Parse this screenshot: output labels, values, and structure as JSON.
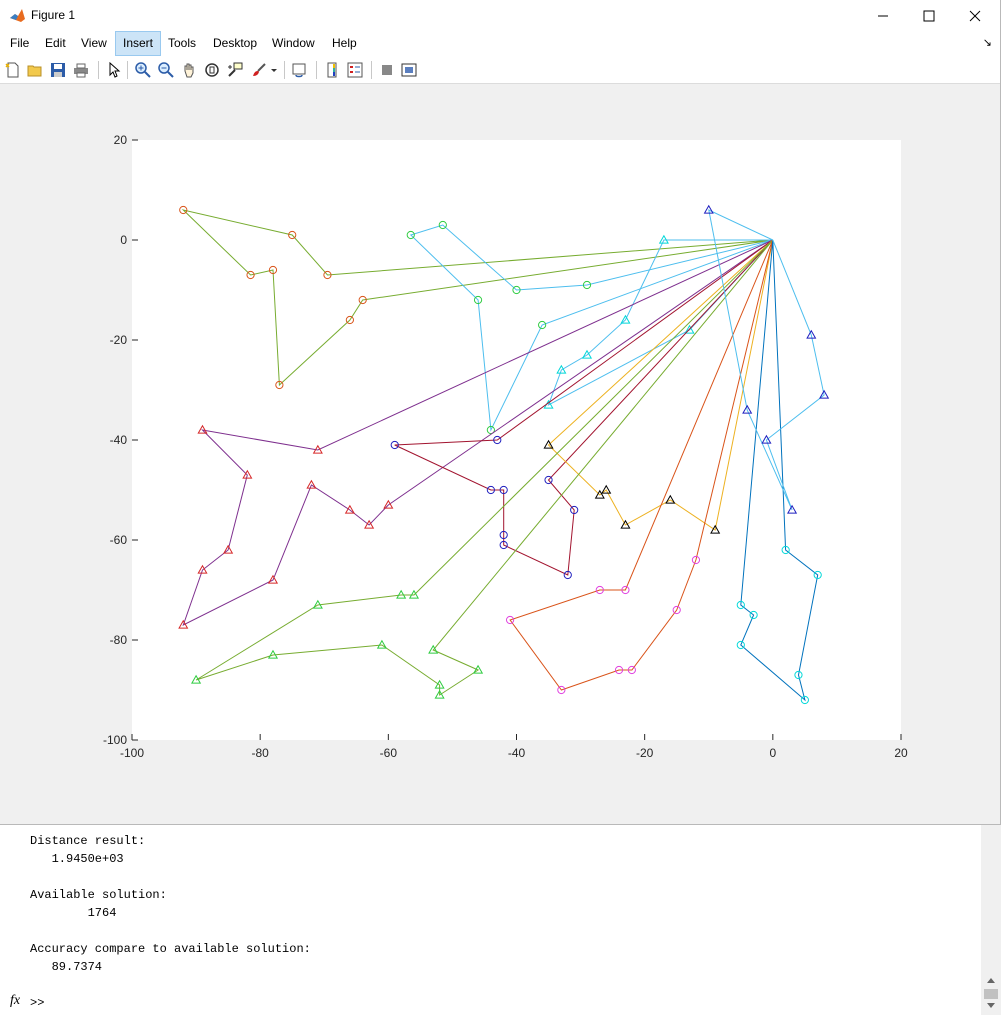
{
  "window": {
    "title": "Figure 1",
    "minimize_icon": "minimize-icon",
    "maximize_icon": "maximize-icon",
    "close_icon": "close-icon"
  },
  "menu": {
    "items": [
      "File",
      "Edit",
      "View",
      "Insert",
      "Tools",
      "Desktop",
      "Window",
      "Help"
    ],
    "active": "Insert"
  },
  "toolbar": {
    "icons": [
      "new-figure-icon",
      "open-file-icon",
      "save-icon",
      "print-icon",
      "edit-plot-icon",
      "zoom-in-icon",
      "zoom-out-icon",
      "pan-icon",
      "rotate-3d-icon",
      "data-cursor-icon",
      "brush-icon",
      "link-plot-icon",
      "insert-colorbar-icon",
      "insert-legend-icon",
      "hide-plot-tools-icon",
      "show-plot-tools-icon"
    ]
  },
  "chart_data": {
    "type": "line",
    "xlim": [
      -100,
      20
    ],
    "ylim": [
      -100,
      20
    ],
    "x_ticks": [
      -100,
      -80,
      -60,
      -40,
      -20,
      0,
      20
    ],
    "y_ticks": [
      20,
      0,
      -20,
      -40,
      -60,
      -80,
      -100
    ],
    "depot": [
      0,
      0
    ],
    "routes": [
      {
        "color": "#77ac30",
        "marker": "circle",
        "marker_color": "#d95319",
        "points": [
          [
            0,
            0
          ],
          [
            -69.5,
            -7
          ],
          [
            -75,
            1
          ],
          [
            -92,
            6
          ],
          [
            -81.5,
            -7
          ],
          [
            -78,
            -6
          ],
          [
            -77,
            -29
          ],
          [
            -66,
            -16
          ],
          [
            -64,
            -12
          ],
          [
            0,
            0
          ]
        ]
      },
      {
        "color": "#4dbeee",
        "marker": "circle",
        "marker_color": "#2ecc40",
        "points": [
          [
            0,
            0
          ],
          [
            -29,
            -9
          ],
          [
            -40,
            -10
          ],
          [
            -51.5,
            3
          ],
          [
            -56.5,
            1
          ],
          [
            -46,
            -12
          ],
          [
            -44,
            -38
          ],
          [
            -36,
            -17
          ],
          [
            0,
            0
          ]
        ]
      },
      {
        "color": "#4dbeee",
        "marker": "triangle",
        "marker_color": "#00d8d8",
        "points": [
          [
            0,
            0
          ],
          [
            -17,
            0
          ],
          [
            -23,
            -16
          ],
          [
            -29,
            -23
          ],
          [
            -33,
            -26
          ],
          [
            -35,
            -33
          ],
          [
            -13,
            -18
          ],
          [
            0,
            0
          ]
        ]
      },
      {
        "color": "#7e2f8e",
        "marker": "triangle",
        "marker_color": "#d62728",
        "points": [
          [
            0,
            0
          ],
          [
            -71,
            -42
          ],
          [
            -89,
            -38
          ],
          [
            -82,
            -47
          ],
          [
            -85,
            -62
          ],
          [
            -89,
            -66
          ],
          [
            -92,
            -77
          ],
          [
            -78,
            -68
          ],
          [
            -72,
            -49
          ],
          [
            -66,
            -54
          ],
          [
            -63,
            -57
          ],
          [
            -60,
            -53
          ],
          [
            0,
            0
          ]
        ]
      },
      {
        "color": "#a2142f",
        "marker": "circle",
        "marker_color": "#1f1fbf",
        "points": [
          [
            0,
            0
          ],
          [
            -43,
            -40
          ],
          [
            -59,
            -41
          ],
          [
            -44,
            -50
          ],
          [
            -42,
            -50
          ],
          [
            -42,
            -59
          ],
          [
            -42,
            -61
          ],
          [
            -32,
            -67
          ],
          [
            -31,
            -54
          ],
          [
            -35,
            -48
          ],
          [
            0,
            0
          ]
        ]
      },
      {
        "color": "#edb120",
        "marker": "triangle",
        "marker_color": "#000000",
        "points": [
          [
            0,
            0
          ],
          [
            -35,
            -41
          ],
          [
            -27,
            -51
          ],
          [
            -26,
            -50
          ],
          [
            -23,
            -57
          ],
          [
            -16,
            -52
          ],
          [
            -9,
            -58
          ],
          [
            0,
            0
          ]
        ]
      },
      {
        "color": "#77ac30",
        "marker": "triangle",
        "marker_color": "#2ecc40",
        "points": [
          [
            0,
            0
          ],
          [
            -56,
            -71
          ],
          [
            -58,
            -71
          ],
          [
            -71,
            -73
          ],
          [
            -90,
            -88
          ],
          [
            -78,
            -83
          ],
          [
            -61,
            -81
          ],
          [
            -52,
            -89
          ],
          [
            -52,
            -91
          ],
          [
            -46,
            -86
          ],
          [
            -53,
            -82
          ],
          [
            0,
            0
          ]
        ]
      },
      {
        "color": "#d95319",
        "marker": "circle",
        "marker_color": "#e040e0",
        "points": [
          [
            0,
            0
          ],
          [
            -12,
            -64
          ],
          [
            -15,
            -74
          ],
          [
            -22,
            -86
          ],
          [
            -24,
            -86
          ],
          [
            -33,
            -90
          ],
          [
            -41,
            -76
          ],
          [
            -27,
            -70
          ],
          [
            -23,
            -70
          ],
          [
            0,
            0
          ]
        ]
      },
      {
        "color": "#0072bd",
        "marker": "circle",
        "marker_color": "#00d8d8",
        "points": [
          [
            0,
            0
          ],
          [
            -5,
            -73
          ],
          [
            -3,
            -75
          ],
          [
            -5,
            -81
          ],
          [
            5,
            -92
          ],
          [
            4,
            -87
          ],
          [
            7,
            -67
          ],
          [
            2,
            -62
          ],
          [
            0,
            0
          ]
        ]
      },
      {
        "color": "#4dbeee",
        "marker": "triangle",
        "marker_color": "#1f1fbf",
        "points": [
          [
            0,
            0
          ],
          [
            -10,
            6
          ],
          [
            -4,
            -34
          ],
          [
            3,
            -54
          ],
          [
            -1,
            -40
          ],
          [
            8,
            -31
          ],
          [
            6,
            -19
          ],
          [
            0,
            0
          ]
        ]
      }
    ]
  },
  "console": {
    "lines": [
      "Distance result:",
      "   1.9450e+03",
      "",
      "Available solution:",
      "        1764",
      "",
      "Accuracy compare to available solution:",
      "   89.7374"
    ],
    "fx_label": "fx",
    "prompt": ">>"
  }
}
